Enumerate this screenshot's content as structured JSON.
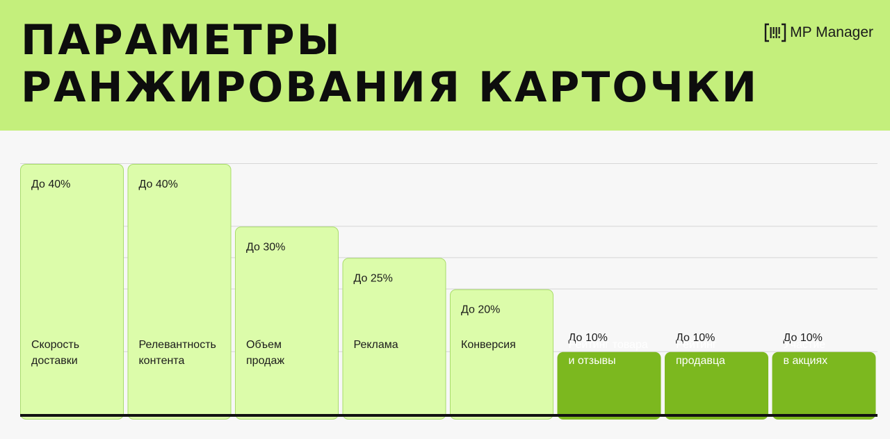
{
  "header": {
    "title_line1": "ПАРАМЕТРЫ",
    "title_line2": "РАНЖИРОВАНИЯ КАРТОЧКИ",
    "background": "#c4ef7c"
  },
  "brand": {
    "name": "MP Manager",
    "icon": "barcode-bracket-icon"
  },
  "chart_data": {
    "type": "bar",
    "title": "",
    "xlabel": "",
    "ylabel": "",
    "ylim": [
      0,
      40
    ],
    "grid": true,
    "categories": [
      [
        "Скорость",
        "доставки"
      ],
      [
        "Релевантность",
        "контента"
      ],
      [
        "Объем",
        "продаж"
      ],
      [
        "Реклама"
      ],
      [
        "Конверсия"
      ],
      [
        "Рейтинг товара",
        "и отзывы"
      ],
      [
        "Рейтинг",
        "продавца"
      ],
      [
        "Участие",
        "в акциях"
      ]
    ],
    "values": [
      40,
      40,
      30,
      25,
      20,
      10,
      10,
      10
    ],
    "labels": [
      "До 40%",
      "До 40%",
      "До 30%",
      "До 25%",
      "До 20%",
      "До 10%",
      "До 10%",
      "До 10%"
    ],
    "colors": {
      "light_fill": "#dcfcaa",
      "light_stroke": "#a9dc6b",
      "light_text": "#1b1b1b",
      "dark_fill": "#7cb81f",
      "dark_text": "#ffffff",
      "grid": "#d6d6d6",
      "baseline": "#111111"
    }
  }
}
